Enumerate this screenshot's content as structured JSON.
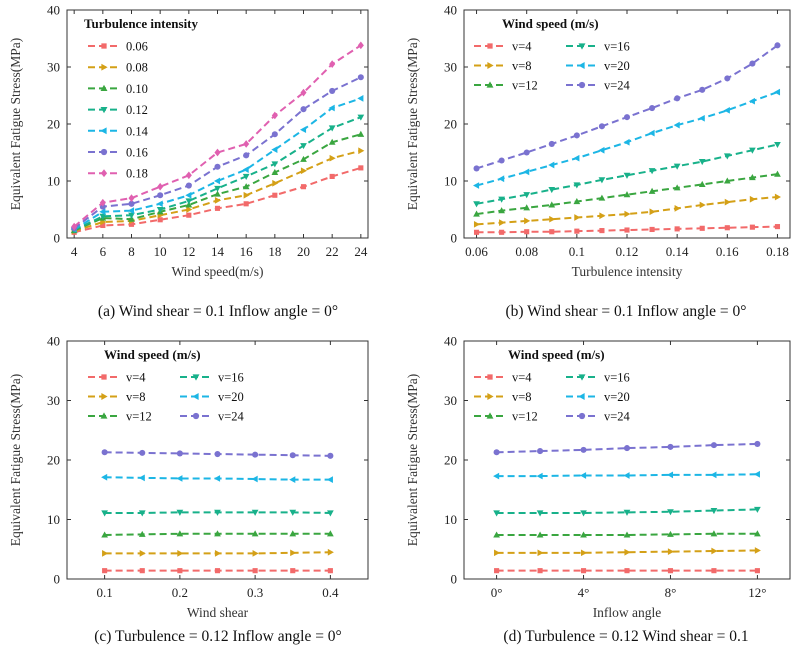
{
  "colors": {
    "v4": "#f26a6a",
    "v8": "#d4a017",
    "v12": "#3aa640",
    "v16": "#18b18a",
    "v20": "#1cb6e5",
    "v24": "#7a72d0",
    "ti18": "#e060b0"
  },
  "chart_data": [
    {
      "type": "line",
      "caption": "(a) Wind shear = 0.1  Inflow angle = 0°",
      "xlabel": "Wind speed(m/s)",
      "ylabel": "Equivalent Fatigue Stress(MPa)",
      "xlim": [
        3.5,
        24.5
      ],
      "ylim": [
        0,
        40
      ],
      "xticks": [
        4,
        6,
        8,
        10,
        12,
        14,
        16,
        18,
        20,
        22,
        24
      ],
      "xtick_labels": [
        "4",
        "6",
        "8",
        "10",
        "12",
        "14",
        "16",
        "18",
        "20",
        "22",
        "24"
      ],
      "yticks": [
        0,
        10,
        20,
        30,
        40
      ],
      "legend_title": "Turbulence intensity",
      "legend_columns": 1,
      "x": [
        4,
        6,
        8,
        10,
        12,
        14,
        16,
        18,
        20,
        22,
        24
      ],
      "series": [
        {
          "name": "0.06",
          "color": "#f26a6a",
          "marker": "square",
          "values": [
            1.0,
            2.2,
            2.4,
            3.2,
            4.0,
            5.2,
            6.0,
            7.5,
            9.0,
            10.8,
            12.3
          ]
        },
        {
          "name": "0.08",
          "color": "#d4a017",
          "marker": "right",
          "values": [
            1.2,
            2.8,
            3.0,
            4.0,
            5.0,
            6.6,
            7.5,
            9.6,
            11.8,
            14.0,
            15.3
          ]
        },
        {
          "name": "0.10",
          "color": "#3aa640",
          "marker": "up",
          "values": [
            1.3,
            3.5,
            3.3,
            4.6,
            5.8,
            7.7,
            9.0,
            11.5,
            13.8,
            16.8,
            18.2
          ]
        },
        {
          "name": "0.12",
          "color": "#18b18a",
          "marker": "down",
          "values": [
            1.4,
            3.8,
            4.0,
            5.0,
            6.5,
            8.7,
            10.8,
            13.0,
            16.2,
            19.3,
            21.2
          ]
        },
        {
          "name": "0.14",
          "color": "#1cb6e5",
          "marker": "left",
          "values": [
            1.5,
            4.6,
            4.8,
            6.0,
            7.5,
            10.0,
            12.0,
            15.5,
            19.0,
            22.8,
            24.5
          ]
        },
        {
          "name": "0.16",
          "color": "#7a72d0",
          "marker": "circle",
          "values": [
            1.7,
            5.5,
            6.0,
            7.5,
            9.2,
            12.5,
            14.5,
            18.2,
            22.6,
            25.8,
            28.2
          ]
        },
        {
          "name": "0.18",
          "color": "#e060b0",
          "marker": "diamond",
          "values": [
            2.0,
            6.2,
            7.0,
            9.0,
            11.0,
            15.0,
            16.5,
            21.5,
            25.5,
            30.5,
            33.8
          ]
        }
      ],
      "grid": false
    },
    {
      "type": "line",
      "caption": "(b) Wind shear = 0.1  Inflow angle = 0°",
      "xlabel": "Turbulence intensity",
      "ylabel": "Equivalent Fatigue Stress(MPa)",
      "xlim": [
        0.055,
        0.185
      ],
      "ylim": [
        0,
        40
      ],
      "xticks": [
        0.06,
        0.08,
        0.1,
        0.12,
        0.14,
        0.16,
        0.18
      ],
      "xtick_labels": [
        "0.06",
        "0.08",
        "0.1",
        "0.12",
        "0.14",
        "0.16",
        "0.18"
      ],
      "yticks": [
        0,
        10,
        20,
        30,
        40
      ],
      "legend_title": "Wind speed (m/s)",
      "legend_columns": 2,
      "x": [
        0.06,
        0.07,
        0.08,
        0.09,
        0.1,
        0.11,
        0.12,
        0.13,
        0.14,
        0.15,
        0.16,
        0.17,
        0.18
      ],
      "series": [
        {
          "name": "v=4",
          "color": "#f26a6a",
          "marker": "square",
          "values": [
            1.0,
            1.0,
            1.1,
            1.1,
            1.2,
            1.3,
            1.4,
            1.5,
            1.6,
            1.7,
            1.8,
            1.9,
            2.0
          ]
        },
        {
          "name": "v=8",
          "color": "#d4a017",
          "marker": "right",
          "values": [
            2.4,
            2.7,
            3.0,
            3.3,
            3.6,
            3.9,
            4.2,
            4.6,
            5.2,
            5.8,
            6.3,
            6.8,
            7.2
          ]
        },
        {
          "name": "v=12",
          "color": "#3aa640",
          "marker": "up",
          "values": [
            4.2,
            4.8,
            5.3,
            5.8,
            6.4,
            7.0,
            7.6,
            8.2,
            8.8,
            9.4,
            10.0,
            10.6,
            11.2
          ]
        },
        {
          "name": "v=16",
          "color": "#18b18a",
          "marker": "down",
          "values": [
            6.0,
            6.8,
            7.6,
            8.5,
            9.3,
            10.2,
            11.0,
            11.8,
            12.6,
            13.4,
            14.4,
            15.4,
            16.4
          ]
        },
        {
          "name": "v=20",
          "color": "#1cb6e5",
          "marker": "left",
          "values": [
            9.2,
            10.4,
            11.6,
            12.8,
            14.0,
            15.4,
            16.8,
            18.4,
            19.8,
            21.0,
            22.4,
            24.0,
            25.6
          ]
        },
        {
          "name": "v=24",
          "color": "#7a72d0",
          "marker": "circle",
          "values": [
            12.2,
            13.6,
            15.0,
            16.5,
            18.0,
            19.6,
            21.2,
            22.8,
            24.5,
            26.0,
            28.0,
            30.6,
            33.8
          ]
        }
      ],
      "grid": false
    },
    {
      "type": "line",
      "caption": "(c) Turbulence = 0.12  Inflow angle = 0°",
      "xlabel": "Wind shear",
      "ylabel": "Equivalent Fatigue Stress(MPa)",
      "xlim": [
        0.05,
        0.45
      ],
      "ylim": [
        0,
        40
      ],
      "xticks": [
        0.1,
        0.2,
        0.3,
        0.4
      ],
      "xtick_labels": [
        "0.1",
        "0.2",
        "0.3",
        "0.4"
      ],
      "yticks": [
        0,
        10,
        20,
        30,
        40
      ],
      "legend_title": "Wind speed (m/s)",
      "legend_columns": 2,
      "x": [
        0.1,
        0.15,
        0.2,
        0.25,
        0.3,
        0.35,
        0.4
      ],
      "series": [
        {
          "name": "v=4",
          "color": "#f26a6a",
          "marker": "square",
          "values": [
            1.4,
            1.4,
            1.4,
            1.4,
            1.4,
            1.4,
            1.4
          ]
        },
        {
          "name": "v=8",
          "color": "#d4a017",
          "marker": "right",
          "values": [
            4.3,
            4.3,
            4.3,
            4.3,
            4.3,
            4.4,
            4.5
          ]
        },
        {
          "name": "v=12",
          "color": "#3aa640",
          "marker": "up",
          "values": [
            7.4,
            7.5,
            7.6,
            7.6,
            7.6,
            7.6,
            7.6
          ]
        },
        {
          "name": "v=16",
          "color": "#18b18a",
          "marker": "down",
          "values": [
            11.1,
            11.1,
            11.2,
            11.2,
            11.2,
            11.2,
            11.1
          ]
        },
        {
          "name": "v=20",
          "color": "#1cb6e5",
          "marker": "left",
          "values": [
            17.1,
            17.0,
            16.9,
            16.9,
            16.8,
            16.7,
            16.7
          ]
        },
        {
          "name": "v=24",
          "color": "#7a72d0",
          "marker": "circle",
          "values": [
            21.3,
            21.2,
            21.1,
            21.0,
            20.9,
            20.8,
            20.7
          ]
        }
      ],
      "grid": false
    },
    {
      "type": "line",
      "caption": "(d) Turbulence = 0.12 Wind shear = 0.1",
      "xlabel": "Inflow angle",
      "ylabel": "Equivalent Fatigue Stress(MPa)",
      "xlim": [
        -1.5,
        13.5
      ],
      "ylim": [
        0,
        40
      ],
      "xticks": [
        0,
        4,
        8,
        12
      ],
      "xtick_labels": [
        "0°",
        "4°",
        "8°",
        "12°"
      ],
      "yticks": [
        0,
        10,
        20,
        30,
        40
      ],
      "legend_title": "Wind speed (m/s)",
      "legend_columns": 2,
      "x": [
        0,
        2,
        4,
        6,
        8,
        10,
        12
      ],
      "series": [
        {
          "name": "v=4",
          "color": "#f26a6a",
          "marker": "square",
          "values": [
            1.4,
            1.4,
            1.4,
            1.4,
            1.4,
            1.4,
            1.4
          ]
        },
        {
          "name": "v=8",
          "color": "#d4a017",
          "marker": "right",
          "values": [
            4.4,
            4.4,
            4.4,
            4.5,
            4.6,
            4.7,
            4.8
          ]
        },
        {
          "name": "v=12",
          "color": "#3aa640",
          "marker": "up",
          "values": [
            7.4,
            7.4,
            7.4,
            7.4,
            7.5,
            7.6,
            7.6
          ]
        },
        {
          "name": "v=16",
          "color": "#18b18a",
          "marker": "down",
          "values": [
            11.1,
            11.1,
            11.1,
            11.2,
            11.3,
            11.5,
            11.7
          ]
        },
        {
          "name": "v=20",
          "color": "#1cb6e5",
          "marker": "left",
          "values": [
            17.3,
            17.3,
            17.4,
            17.4,
            17.5,
            17.5,
            17.6
          ]
        },
        {
          "name": "v=24",
          "color": "#7a72d0",
          "marker": "circle",
          "values": [
            21.3,
            21.5,
            21.7,
            22.0,
            22.2,
            22.5,
            22.7
          ]
        }
      ],
      "grid": false
    }
  ]
}
